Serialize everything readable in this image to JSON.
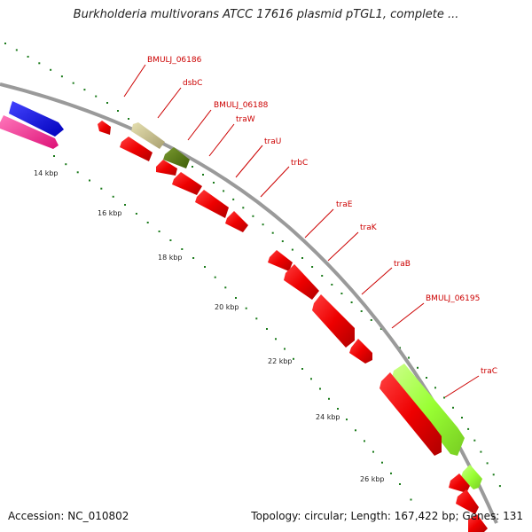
{
  "title": "Burkholderia multivorans ATCC 17616 plasmid pTGL1, complete ...",
  "footer": {
    "accession": "Accession: NC_010802",
    "summary": "Topology: circular; Length: 167,422 bp; Genes: 131"
  },
  "ticks": [
    "14 kbp",
    "16 kbp",
    "18 kbp",
    "20 kbp",
    "22 kbp",
    "24 kbp",
    "26 kbp"
  ],
  "genes": [
    "BMULJ_06186",
    "dsbC",
    "BMULJ_06188",
    "traW",
    "traU",
    "trbC",
    "traE",
    "traK",
    "traB",
    "BMULJ_06195",
    "traC"
  ],
  "colors": {
    "backbone": "#999999",
    "cds_red": "#ee0000",
    "dsbC": "#c8c08a",
    "BMULJ_06188": "#557a10",
    "traC": "#99ff33",
    "blue_feature": "#1a1aee",
    "pink_feature": "#ff3399",
    "tick": "#1a7a1a",
    "label": "#cc0000"
  }
}
